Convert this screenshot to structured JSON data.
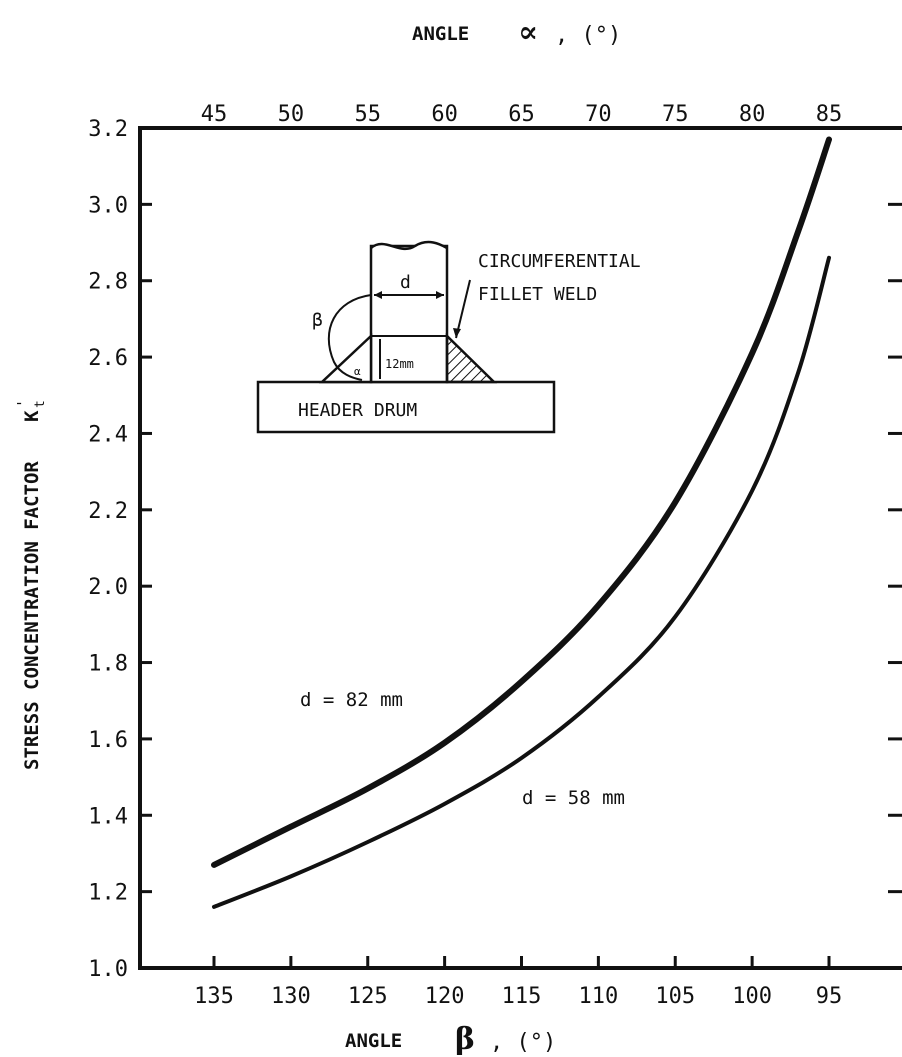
{
  "chart_data": {
    "type": "line",
    "title": "",
    "top_axis": {
      "label": "ANGLE",
      "symbol": "∝",
      "unit": ", (°)",
      "ticks": [
        "45",
        "50",
        "55",
        "60",
        "65",
        "70",
        "75",
        "80",
        "85"
      ]
    },
    "bottom_axis": {
      "label": "ANGLE",
      "symbol": "β",
      "unit": ", (°)",
      "ticks": [
        "135",
        "130",
        "125",
        "120",
        "115",
        "110",
        "105",
        "100",
        "95"
      ],
      "range": [
        135,
        95
      ]
    },
    "y_axis": {
      "label": "STRESS CONCENTRATION FACTOR",
      "symbol": "K",
      "symbol_sub": "t",
      "symbol_sup": "'",
      "range": [
        1.0,
        3.2
      ],
      "ticks": [
        "1.0",
        "1.2",
        "1.4",
        "1.6",
        "1.8",
        "2.0",
        "2.2",
        "2.4",
        "2.6",
        "2.8",
        "3.0",
        "3.2"
      ]
    },
    "grid": false,
    "series": [
      {
        "name": "d = 82 mm",
        "x": [
          135,
          130,
          125,
          120,
          115,
          110,
          105,
          100,
          97,
          95
        ],
        "y": [
          1.27,
          1.37,
          1.47,
          1.59,
          1.75,
          1.95,
          2.22,
          2.61,
          2.93,
          3.17
        ]
      },
      {
        "name": "d = 58 mm",
        "x": [
          135,
          130,
          125,
          120,
          115,
          110,
          105,
          100,
          97,
          95
        ],
        "y": [
          1.16,
          1.24,
          1.33,
          1.43,
          1.55,
          1.71,
          1.92,
          2.25,
          2.56,
          2.86
        ]
      }
    ],
    "annotations": {
      "weld_label_1": "CIRCUMFERENTIAL",
      "weld_label_2": "FILLET WELD",
      "drum_label": "HEADER DRUM",
      "dim_d": "d",
      "dim_beta": "β",
      "dim_alpha": "α",
      "dim_height": "12mm"
    }
  }
}
